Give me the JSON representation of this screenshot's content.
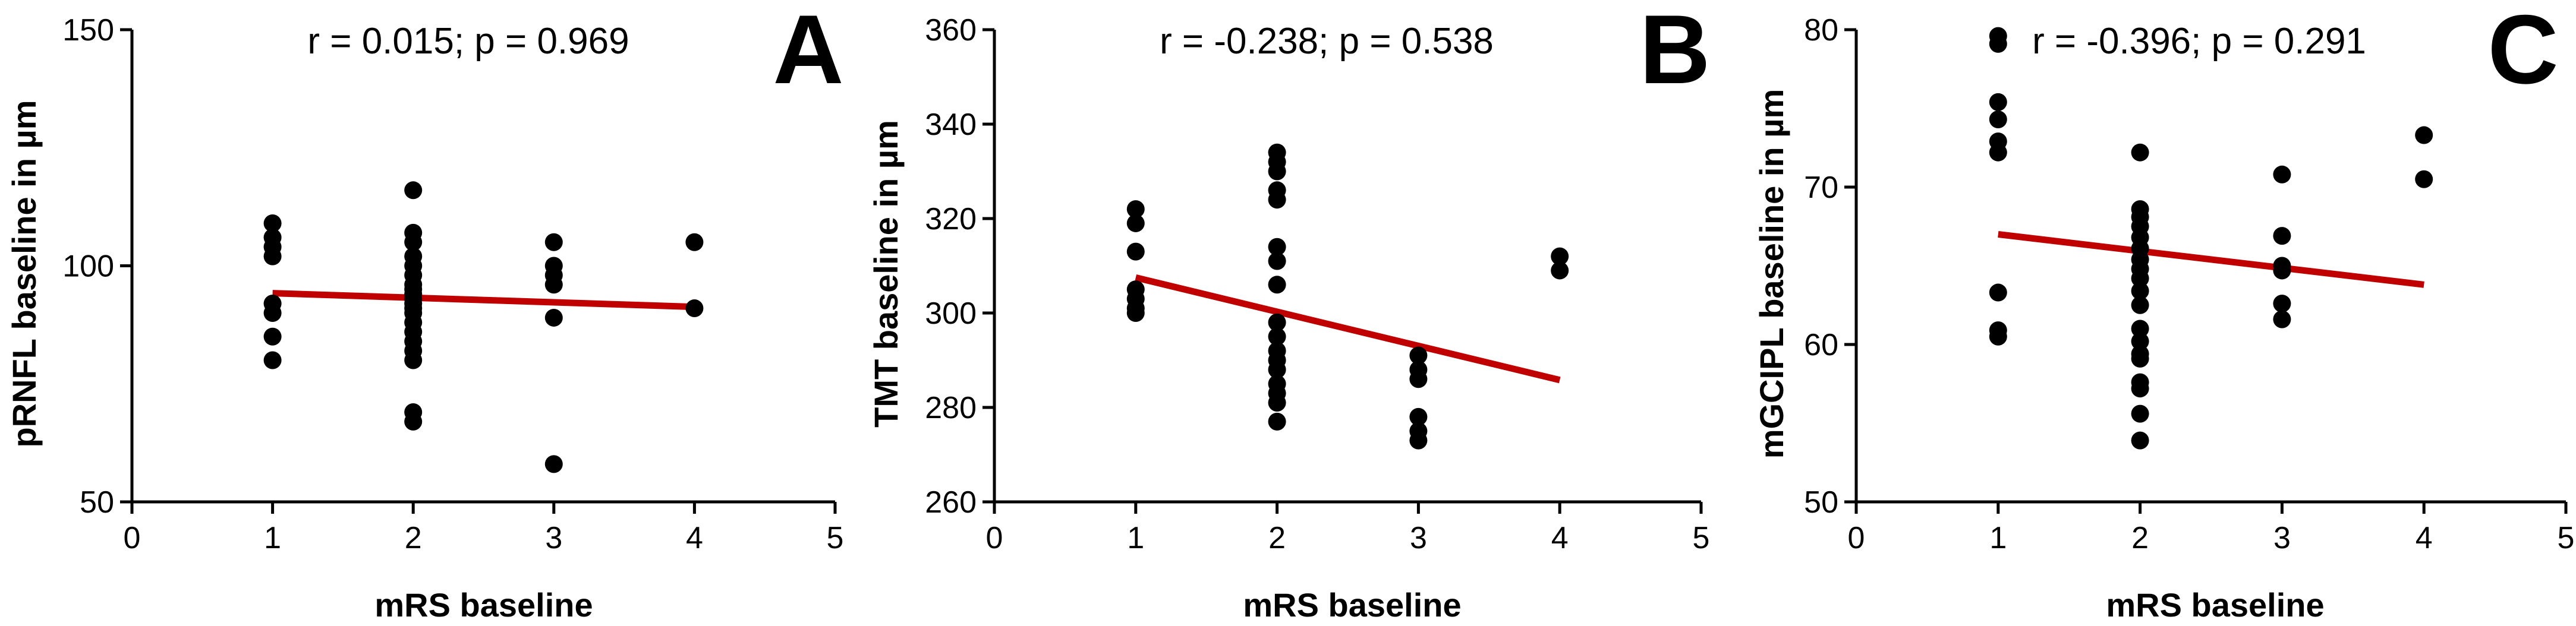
{
  "chart_data": [
    {
      "type": "scatter",
      "panel_letter": "A",
      "stat_label": "r = 0.015; p = 0.969",
      "xlabel": "mRS baseline",
      "ylabel": "pRNFL baseline in µm",
      "xlim": [
        0,
        5
      ],
      "ylim": [
        50,
        150
      ],
      "x_ticks": [
        0,
        1,
        2,
        3,
        4,
        5
      ],
      "y_ticks": [
        50,
        100,
        150
      ],
      "points": [
        [
          1,
          109
        ],
        [
          1,
          106
        ],
        [
          1,
          104
        ],
        [
          1,
          102
        ],
        [
          1,
          92
        ],
        [
          1,
          90
        ],
        [
          1,
          85
        ],
        [
          1,
          80
        ],
        [
          2,
          116
        ],
        [
          2,
          107
        ],
        [
          2,
          105
        ],
        [
          2,
          102
        ],
        [
          2,
          100
        ],
        [
          2,
          98
        ],
        [
          2,
          96
        ],
        [
          2,
          95
        ],
        [
          2,
          94
        ],
        [
          2,
          93
        ],
        [
          2,
          92
        ],
        [
          2,
          91
        ],
        [
          2,
          90
        ],
        [
          2,
          88
        ],
        [
          2,
          86
        ],
        [
          2,
          84
        ],
        [
          2,
          82
        ],
        [
          2,
          80
        ],
        [
          2,
          69
        ],
        [
          2,
          67
        ],
        [
          3,
          105
        ],
        [
          3,
          100
        ],
        [
          3,
          98
        ],
        [
          3,
          96
        ],
        [
          3,
          89
        ],
        [
          3,
          58
        ],
        [
          4,
          105
        ],
        [
          4,
          91
        ]
      ],
      "trendline": {
        "x": [
          1,
          4
        ],
        "y": [
          94.2,
          91.3
        ],
        "color": "#c00000"
      },
      "marker_color": "#000000"
    },
    {
      "type": "scatter",
      "panel_letter": "B",
      "stat_label": "r = -0.238; p = 0.538",
      "xlabel": "mRS baseline",
      "ylabel": "TMT baseline in µm",
      "xlim": [
        0,
        5
      ],
      "ylim": [
        260,
        360
      ],
      "x_ticks": [
        0,
        1,
        2,
        3,
        4,
        5
      ],
      "y_ticks": [
        260,
        280,
        300,
        320,
        340,
        360
      ],
      "points": [
        [
          1,
          322
        ],
        [
          1,
          319
        ],
        [
          1,
          313
        ],
        [
          1,
          305
        ],
        [
          1,
          303
        ],
        [
          1,
          301
        ],
        [
          1,
          300
        ],
        [
          2,
          334
        ],
        [
          2,
          332
        ],
        [
          2,
          330
        ],
        [
          2,
          326
        ],
        [
          2,
          324
        ],
        [
          2,
          314
        ],
        [
          2,
          311
        ],
        [
          2,
          306
        ],
        [
          2,
          298
        ],
        [
          2,
          295
        ],
        [
          2,
          292
        ],
        [
          2,
          290
        ],
        [
          2,
          288
        ],
        [
          2,
          285
        ],
        [
          2,
          283
        ],
        [
          2,
          281
        ],
        [
          2,
          277
        ],
        [
          3,
          291
        ],
        [
          3,
          288
        ],
        [
          3,
          286
        ],
        [
          3,
          278
        ],
        [
          3,
          275
        ],
        [
          3,
          273
        ],
        [
          4,
          312
        ],
        [
          4,
          309
        ]
      ],
      "trendline": {
        "x": [
          1,
          4
        ],
        "y": [
          307.5,
          285.8
        ],
        "color": "#c00000"
      },
      "marker_color": "#000000"
    },
    {
      "type": "scatter",
      "panel_letter": "C",
      "stat_label": "r = -0.396; p = 0.291",
      "xlabel": "mRS baseline",
      "ylabel": "mGCIPL baseline in µm",
      "xlim": [
        0,
        5
      ],
      "ylim": [
        50,
        80
      ],
      "x_ticks": [
        0,
        1,
        2,
        3,
        4,
        5
      ],
      "y_ticks": [
        50,
        60,
        70,
        80
      ],
      "points": [
        [
          1,
          79.6
        ],
        [
          1,
          79.1
        ],
        [
          1,
          75.4
        ],
        [
          1,
          74.3
        ],
        [
          1,
          72.9
        ],
        [
          1,
          72.2
        ],
        [
          1,
          63.3
        ],
        [
          1,
          60.9
        ],
        [
          1,
          60.5
        ],
        [
          2,
          72.2
        ],
        [
          2,
          68.6
        ],
        [
          2,
          68.1
        ],
        [
          2,
          67.5
        ],
        [
          2,
          66.8
        ],
        [
          2,
          66.1
        ],
        [
          2,
          65.4
        ],
        [
          2,
          64.8
        ],
        [
          2,
          64.2
        ],
        [
          2,
          63.4
        ],
        [
          2,
          62.5
        ],
        [
          2,
          61.0
        ],
        [
          2,
          60.2
        ],
        [
          2,
          59.4
        ],
        [
          2,
          59.1
        ],
        [
          2,
          57.6
        ],
        [
          2,
          57.2
        ],
        [
          2,
          55.6
        ],
        [
          2,
          53.9
        ],
        [
          3,
          70.8
        ],
        [
          3,
          66.9
        ],
        [
          3,
          65.0
        ],
        [
          3,
          64.7
        ],
        [
          3,
          62.6
        ],
        [
          3,
          61.6
        ],
        [
          4,
          73.3
        ],
        [
          4,
          70.5
        ]
      ],
      "trendline": {
        "x": [
          1,
          4
        ],
        "y": [
          67.0,
          63.8
        ],
        "color": "#c00000"
      },
      "marker_color": "#000000"
    }
  ]
}
